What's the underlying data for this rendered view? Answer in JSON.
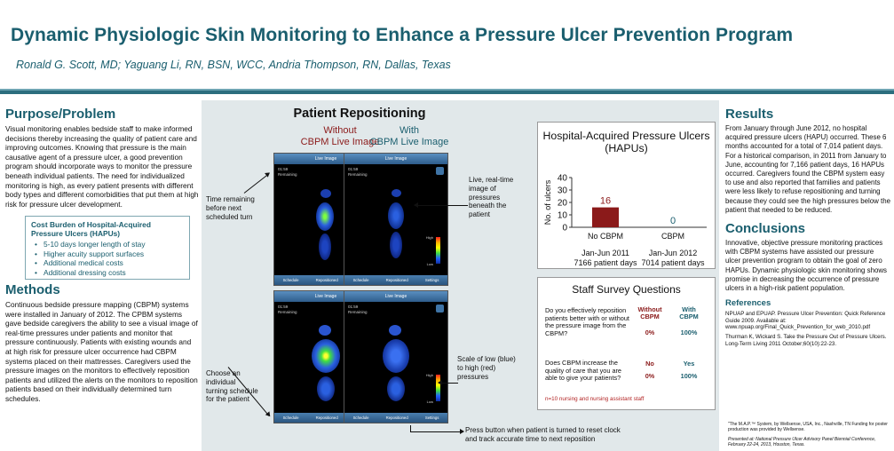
{
  "header": {
    "title": "Dynamic Physiologic Skin Monitoring to Enhance a Pressure Ulcer Prevention Program",
    "authors": "Ronald G. Scott, MD; Yaguang Li, RN, BSN, WCC, Andria Thompson, RN, Dallas, Texas"
  },
  "purpose": {
    "heading": "Purpose/Problem",
    "text": "Visual monitoring enables bedside staff to make informed decisions thereby increasing the quality of patient care and improving outcomes. Knowing that pressure is the main causative agent of a pressure ulcer, a good prevention program should incorporate ways to monitor the pressure beneath individual patients.  The need for individualized monitoring is high, as every patient presents with different body types and different comorbidities that put them at high risk for pressure ulcer development."
  },
  "cost_burden": {
    "title": "Cost Burden of Hospital-Acquired Pressure Ulcers (HAPUs)",
    "items": [
      "5-10 days longer length of stay",
      "Higher acuity support surfaces",
      "Additional medical costs",
      "Additional dressing costs"
    ]
  },
  "methods": {
    "heading": "Methods",
    "text": "Continuous bedside pressure mapping (CBPM) systems were installed in January of 2012.  The CPBM systems gave bedside caregivers the ability to see a visual image of real-time pressures under patients and monitor that pressure continuously. Patients with existing wounds and at high risk for pressure ulcer occurrence had CBPM systems placed on their mattresses. Caregivers used the pressure images on the monitors to effectively reposition patients and utilized the alerts on the monitors to reposition patients based on their individually determined turn schedules."
  },
  "repositioning": {
    "title": "Patient Repositioning",
    "without_line1": "Without",
    "without_line2": "CBPM Live Image",
    "with_line1": "With",
    "with_line2": "CBPM Live Image",
    "device": {
      "top_label": "Live Image",
      "time": "01:59",
      "remaining": "Remaining",
      "scale_high": "High",
      "scale_low": "Low",
      "buttons": [
        "Schedule",
        "Repositioned",
        "Settings"
      ]
    },
    "annotations": {
      "time_remaining": "Time remaining before next scheduled turn",
      "live_image": "Live, real-time image of pressures beneath the patient",
      "turning_schedule": "Choose an individual turning schedule for the patient",
      "scale": "Scale of low (blue) to high (red) pressures",
      "press_button": "Press button when patient is turned to reset clock and track accurate time to next reposition"
    }
  },
  "chart_data": {
    "type": "bar",
    "title": "Hospital-Acquired Pressure Ulcers (HAPUs)",
    "categories": [
      "No CBPM",
      "CBPM"
    ],
    "category_sublabels": [
      [
        "Jan-Jun 2011",
        "7166 patient days"
      ],
      [
        "Jan-Jun 2012",
        "7014 patient days"
      ]
    ],
    "values": [
      16,
      0
    ],
    "data_labels": [
      "16",
      "0"
    ],
    "ylabel": "No. of ulcers",
    "ylim": [
      0,
      40
    ],
    "yticks": [
      0,
      10,
      20,
      30,
      40
    ],
    "colors": [
      "#8b1a1a",
      "#1a5e6e"
    ]
  },
  "survey": {
    "title": "Staff Survey Questions",
    "col_without": "Without CBPM",
    "col_with": "With CBPM",
    "rows": [
      {
        "question": "Do you effectively reposition patients better with or without the pressure image from the CBPM?",
        "without": "0%",
        "with": "100%"
      },
      {
        "question": "Does CBPM increase the quality of care that you are able to give your patients?",
        "answer_without": "No",
        "answer_with": "Yes",
        "without": "0%",
        "with": "100%"
      }
    ],
    "note": "n=10 nursing and nursing assistant staff"
  },
  "results": {
    "heading": "Results",
    "text": "From January through June 2012, no hospital acquired pressure ulcers (HAPU) occurred. These 6 months accounted for a total of 7,014 patient days.  For a historical comparison, in 2011 from January to June, accounting for 7,166 patient days, 16 HAPUs occurred. Caregivers found the CBPM system easy to use and also reported that families and patients were less likely to refuse repositioning and turning because they could see the high pressures below the patient that needed to be reduced."
  },
  "conclusions": {
    "heading": "Conclusions",
    "text": "Innovative, objective pressure monitoring practices with CBPM systems have assisted our pressure ulcer prevention program to obtain the goal of zero HAPUs. Dynamic physiologic skin monitoring shows promise in decreasing the occurrence of pressure ulcers in a high-risk patient population."
  },
  "references": {
    "heading": "References",
    "items": [
      "NPUAP and EPUAP.  Pressure Ulcer Prevention: Quick Reference Guide 2009. Available at: www.npuap.org/Final_Quick_Prevention_for_web_2010.pdf",
      "Thurman K, Wickard S. Take the Pressure Out of Pressure Ulcers. Long-Term Living 2011 October;60(10):22-23."
    ]
  },
  "footnotes": {
    "system": "\"The M.A.P.™ System, by Wellsense, USA, Inc., Nashville, TN Funding for poster production was provided by Wellsense.",
    "presented": "Presented at: National Pressure Ulcer Advisory Panel Biennial Conference, February 22-24, 2013, Houston, Texas."
  }
}
